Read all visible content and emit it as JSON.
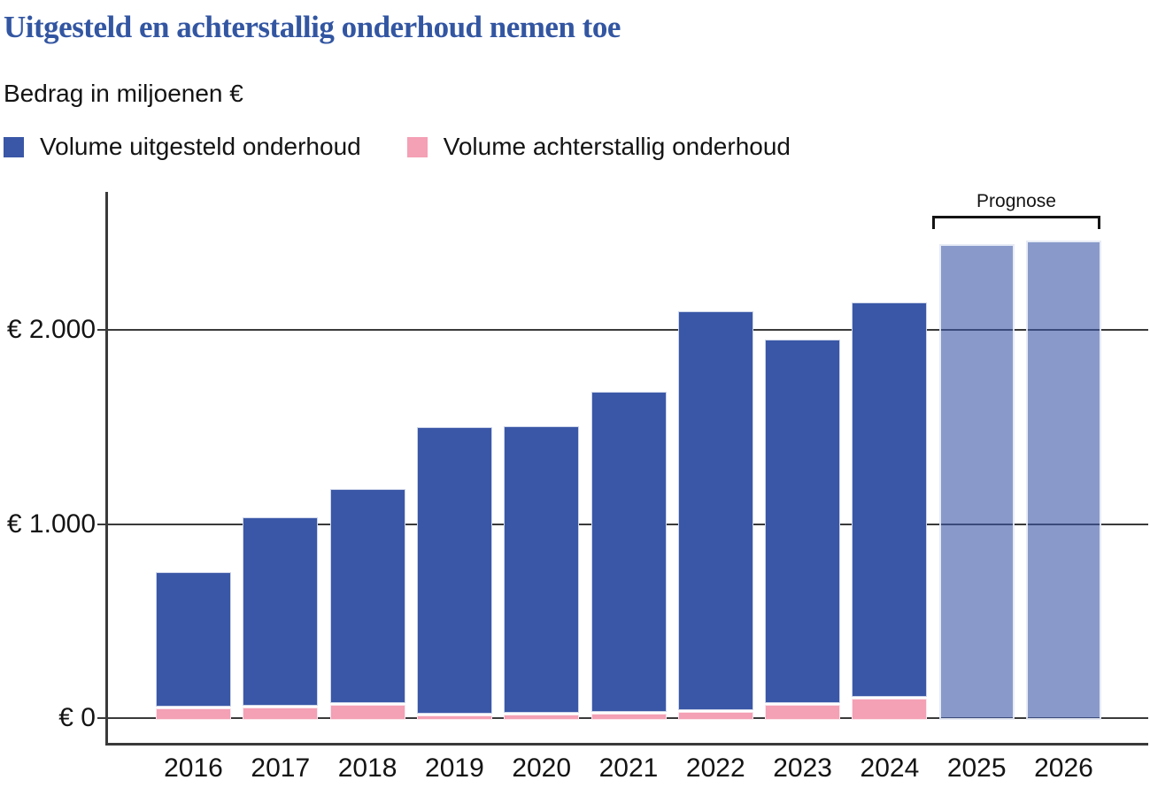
{
  "header": {
    "title": "Uitgesteld en achterstallig onderhoud nemen toe",
    "subtitle": "Bedrag in miljoenen €"
  },
  "legend": [
    {
      "label": "Volume uitgesteld onderhoud",
      "color": "#3a57a7"
    },
    {
      "label": "Volume achterstallig onderhoud",
      "color": "#f4a0b5"
    }
  ],
  "annotation": {
    "label": "Prognose"
  },
  "colors": {
    "title": "#3356a2",
    "bar_uitgesteld": "#3a57a7",
    "bar_achterstallig": "#f4a0b5",
    "bar_prognose": "rgba(58,87,167,0.60)",
    "axis": "#3a3a3a",
    "text": "#141414"
  },
  "chart_data": {
    "type": "bar",
    "stacked": true,
    "title": "Uitgesteld en achterstallig onderhoud nemen toe",
    "ylabel": "Bedrag in miljoenen €",
    "xlabel": "",
    "categories": [
      "2016",
      "2017",
      "2018",
      "2019",
      "2020",
      "2021",
      "2022",
      "2023",
      "2024",
      "2025",
      "2026"
    ],
    "series": [
      {
        "name": "Volume achterstallig onderhoud",
        "color": "#f4a0b5",
        "values": [
          50,
          55,
          70,
          15,
          20,
          25,
          30,
          70,
          100,
          0,
          0
        ]
      },
      {
        "name": "Volume uitgesteld onderhoud",
        "color": "#3a57a7",
        "values": [
          700,
          980,
          1110,
          1485,
          1485,
          1655,
          2065,
          1880,
          2040,
          2440,
          2460
        ]
      }
    ],
    "totals": [
      750,
      1035,
      1180,
      1500,
      1505,
      1680,
      2095,
      1950,
      2140,
      2440,
      2460
    ],
    "prognose_years": [
      "2025",
      "2026"
    ],
    "prognose_label": "Prognose",
    "yticks": [
      {
        "label": "€ 0",
        "value": 0
      },
      {
        "label": "€ 1.000",
        "value": 1000
      },
      {
        "label": "€ 2.000",
        "value": 2000
      }
    ],
    "ylim": [
      0,
      2710
    ],
    "grid": true,
    "legend_position": "top"
  }
}
